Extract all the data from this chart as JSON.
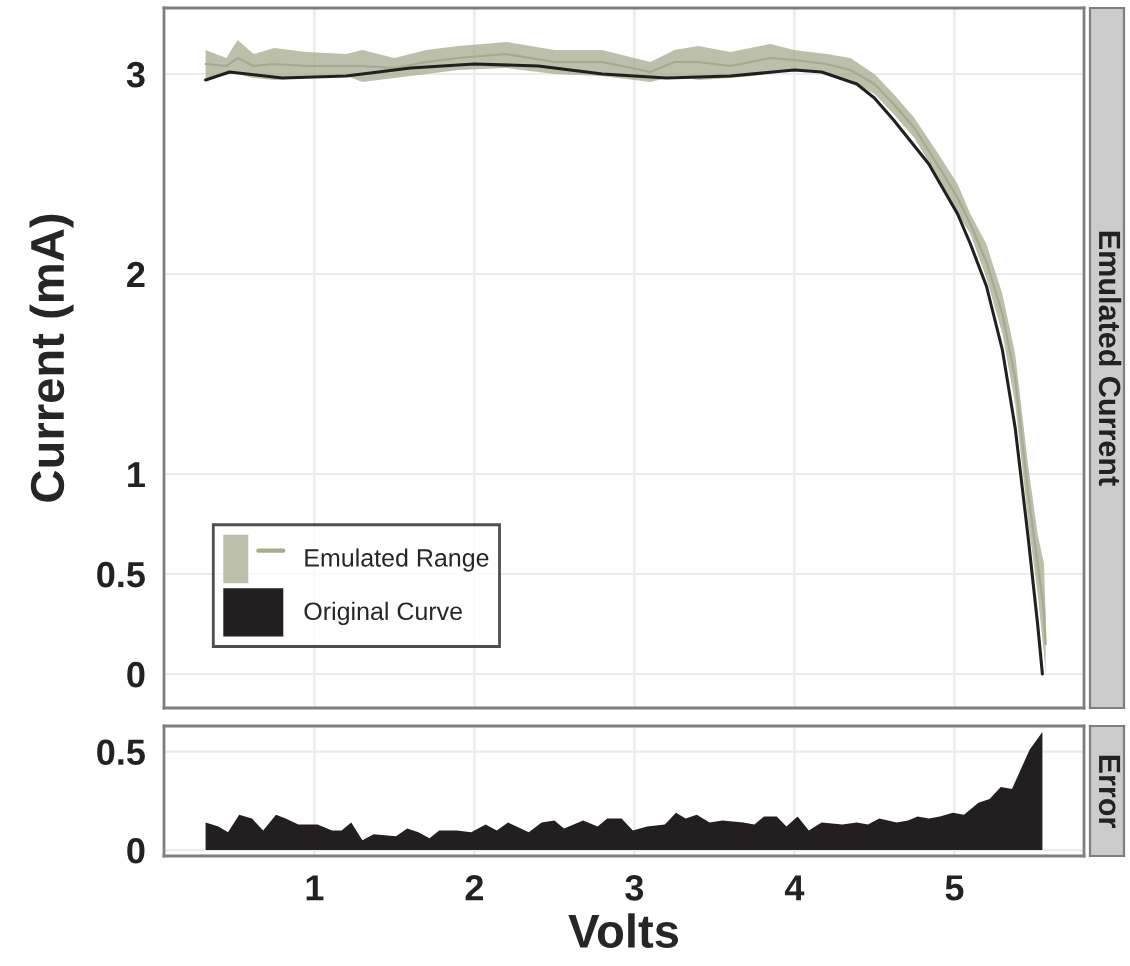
{
  "chart_data": [
    {
      "type": "area",
      "title": "Emulated Current",
      "ylabel": "Current (mA)",
      "xlim": [
        0.06,
        5.81
      ],
      "xticks": [
        1,
        2,
        3,
        4,
        5
      ],
      "ylim": [
        -0.17,
        3.33
      ],
      "yticks": [
        0,
        0.5,
        1,
        2,
        3
      ],
      "tick_labels": "y",
      "grid": true,
      "legend": "bottom left",
      "series": [
        {
          "name": "Emulated Range",
          "type": "line",
          "color": "#a6aa8e",
          "x": [
            0.32,
            0.45,
            0.52,
            0.62,
            0.75,
            0.95,
            1.2,
            1.3,
            1.5,
            1.7,
            1.9,
            2.2,
            2.5,
            2.8,
            3.1,
            3.25,
            3.4,
            3.6,
            3.85,
            4.0,
            4.2,
            4.35,
            4.5,
            4.62,
            4.75,
            4.9,
            5.02,
            5.1,
            5.2,
            5.3,
            5.38,
            5.46,
            5.52,
            5.56,
            5.57
          ],
          "values": [
            3.05,
            3.04,
            3.08,
            3.04,
            3.05,
            3.04,
            3.04,
            3.04,
            3.03,
            3.06,
            3.08,
            3.1,
            3.06,
            3.06,
            3.01,
            3.06,
            3.06,
            3.04,
            3.08,
            3.07,
            3.05,
            3.02,
            2.95,
            2.85,
            2.73,
            2.54,
            2.38,
            2.25,
            2.06,
            1.8,
            1.48,
            0.91,
            0.55,
            0.32,
            0.15
          ],
          "upper": [
            3.12,
            3.08,
            3.17,
            3.1,
            3.13,
            3.11,
            3.1,
            3.12,
            3.08,
            3.12,
            3.14,
            3.16,
            3.12,
            3.12,
            3.06,
            3.12,
            3.14,
            3.11,
            3.15,
            3.12,
            3.1,
            3.08,
            3.0,
            2.9,
            2.78,
            2.6,
            2.45,
            2.3,
            2.15,
            1.9,
            1.6,
            1.05,
            0.7,
            0.55,
            0.3
          ],
          "lower": [
            2.98,
            3.0,
            3.0,
            2.98,
            2.97,
            2.98,
            2.99,
            2.96,
            2.98,
            3.0,
            3.02,
            3.03,
            3.0,
            2.99,
            2.96,
            2.99,
            2.97,
            2.98,
            3.0,
            3.02,
            3.0,
            2.97,
            2.9,
            2.8,
            2.68,
            2.48,
            2.3,
            2.2,
            1.98,
            1.7,
            1.35,
            0.77,
            0.4,
            0.1,
            0.0
          ]
        },
        {
          "name": "Original Curve",
          "type": "line",
          "color": "#231f20",
          "x": [
            0.32,
            0.47,
            0.8,
            1.2,
            1.6,
            2.0,
            2.4,
            2.8,
            3.2,
            3.6,
            4.0,
            4.17,
            4.39,
            4.5,
            4.62,
            4.75,
            4.84,
            5.02,
            5.1,
            5.2,
            5.3,
            5.38,
            5.46,
            5.52,
            5.55
          ],
          "values": [
            2.97,
            3.01,
            2.98,
            2.99,
            3.03,
            3.05,
            3.04,
            3.0,
            2.98,
            2.99,
            3.02,
            3.01,
            2.95,
            2.88,
            2.77,
            2.64,
            2.55,
            2.3,
            2.15,
            1.94,
            1.62,
            1.23,
            0.69,
            0.25,
            0.0
          ]
        }
      ]
    },
    {
      "type": "area",
      "title": "Error",
      "xlabel": "Volts",
      "xlim": [
        0.06,
        5.81
      ],
      "xticks": [
        1,
        2,
        3,
        4,
        5
      ],
      "ylim": [
        -0.03,
        0.63
      ],
      "yticks": [
        0,
        0.5
      ],
      "grid": true,
      "series": [
        {
          "color": "#231f20",
          "x": [
            0.32,
            0.4,
            0.46,
            0.53,
            0.61,
            0.68,
            0.76,
            0.82,
            0.9,
            1.02,
            1.11,
            1.17,
            1.23,
            1.3,
            1.37,
            1.51,
            1.58,
            1.65,
            1.72,
            1.78,
            1.89,
            1.98,
            2.07,
            2.14,
            2.21,
            2.34,
            2.42,
            2.5,
            2.56,
            2.68,
            2.77,
            2.83,
            2.92,
            2.99,
            3.08,
            3.19,
            3.26,
            3.32,
            3.39,
            3.47,
            3.55,
            3.68,
            3.75,
            3.81,
            3.89,
            3.95,
            4.02,
            4.09,
            4.17,
            4.3,
            4.39,
            4.46,
            4.53,
            4.64,
            4.71,
            4.77,
            4.84,
            4.91,
            4.99,
            5.06,
            5.15,
            5.22,
            5.29,
            5.36,
            5.47,
            5.55
          ],
          "values": [
            0.14,
            0.12,
            0.09,
            0.18,
            0.16,
            0.1,
            0.18,
            0.16,
            0.13,
            0.13,
            0.1,
            0.1,
            0.14,
            0.05,
            0.08,
            0.07,
            0.11,
            0.09,
            0.06,
            0.1,
            0.1,
            0.09,
            0.13,
            0.1,
            0.14,
            0.09,
            0.14,
            0.15,
            0.11,
            0.15,
            0.12,
            0.16,
            0.16,
            0.1,
            0.12,
            0.13,
            0.19,
            0.16,
            0.18,
            0.14,
            0.15,
            0.14,
            0.13,
            0.17,
            0.17,
            0.12,
            0.17,
            0.1,
            0.14,
            0.13,
            0.14,
            0.13,
            0.16,
            0.14,
            0.15,
            0.17,
            0.16,
            0.17,
            0.19,
            0.18,
            0.24,
            0.26,
            0.32,
            0.31,
            0.51,
            0.6
          ]
        }
      ]
    }
  ]
}
